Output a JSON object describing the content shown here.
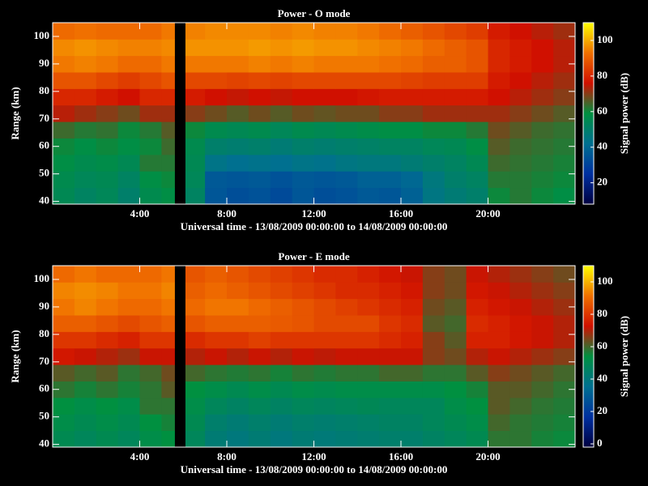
{
  "chart_data": [
    {
      "type": "heatmap",
      "title": "Power - O mode",
      "xlabel": "Universal time - 13/08/2009 00:00:00 to 14/08/2009 00:00:00",
      "ylabel": "Range (km)",
      "colorbar_label": "Signal power (dB)",
      "xlim": [
        0,
        24
      ],
      "ylim": [
        39,
        105
      ],
      "xticks": [
        {
          "value": 4,
          "label": "4:00"
        },
        {
          "value": 8,
          "label": "8:00"
        },
        {
          "value": 12,
          "label": "12:00"
        },
        {
          "value": 16,
          "label": "16:00"
        },
        {
          "value": 20,
          "label": "20:00"
        }
      ],
      "yticks": [
        40,
        50,
        60,
        70,
        80,
        90,
        100
      ],
      "clim": [
        8,
        110
      ],
      "cticks": [
        20,
        40,
        60,
        80,
        100
      ],
      "colormap": [
        "#000040",
        "#0030a0",
        "#007090",
        "#009040",
        "#d01000",
        "#f07000",
        "#ffff00"
      ],
      "xbins": [
        0,
        1,
        2,
        3,
        4,
        5,
        5.6,
        6.1,
        7,
        8,
        9,
        10,
        11,
        12,
        13,
        14,
        15,
        16,
        17,
        18,
        19,
        20,
        21,
        22,
        23,
        24
      ],
      "ybins": [
        39,
        45,
        51,
        57,
        63,
        69,
        75,
        81,
        87,
        93,
        99,
        105
      ],
      "z": [
        [
          55,
          52,
          54,
          50,
          56,
          58,
          null,
          52,
          35,
          33,
          34,
          32,
          35,
          33,
          34,
          36,
          35,
          38,
          45,
          48,
          50,
          60,
          62,
          60,
          58
        ],
        [
          56,
          54,
          55,
          52,
          58,
          60,
          null,
          54,
          36,
          35,
          36,
          34,
          36,
          35,
          36,
          38,
          38,
          40,
          46,
          50,
          52,
          62,
          62,
          61,
          60
        ],
        [
          58,
          56,
          57,
          55,
          62,
          62,
          null,
          55,
          44,
          42,
          43,
          42,
          44,
          43,
          45,
          46,
          46,
          48,
          50,
          52,
          55,
          64,
          63,
          62,
          61
        ],
        [
          60,
          58,
          60,
          58,
          60,
          64,
          null,
          56,
          50,
          49,
          50,
          48,
          50,
          49,
          50,
          51,
          52,
          52,
          54,
          55,
          58,
          66,
          64,
          63,
          62
        ],
        [
          64,
          62,
          63,
          60,
          62,
          66,
          null,
          60,
          56,
          55,
          56,
          54,
          56,
          55,
          56,
          57,
          58,
          58,
          60,
          60,
          62,
          68,
          66,
          64,
          63
        ],
        [
          74,
          72,
          70,
          68,
          72,
          72,
          null,
          70,
          68,
          66,
          68,
          66,
          68,
          67,
          68,
          68,
          70,
          70,
          72,
          72,
          72,
          72,
          70,
          68,
          66
        ],
        [
          80,
          80,
          78,
          76,
          80,
          80,
          null,
          78,
          76,
          75,
          76,
          75,
          76,
          76,
          76,
          77,
          78,
          78,
          78,
          78,
          78,
          76,
          74,
          72,
          70
        ],
        [
          88,
          88,
          86,
          84,
          86,
          88,
          null,
          86,
          86,
          85,
          86,
          85,
          86,
          86,
          86,
          86,
          86,
          85,
          84,
          84,
          84,
          78,
          76,
          74,
          72
        ],
        [
          94,
          95,
          94,
          92,
          92,
          94,
          null,
          94,
          94,
          94,
          95,
          94,
          95,
          94,
          94,
          94,
          93,
          92,
          90,
          90,
          88,
          80,
          78,
          76,
          74
        ],
        [
          96,
          97,
          96,
          95,
          95,
          96,
          null,
          97,
          97,
          97,
          98,
          97,
          98,
          97,
          97,
          96,
          95,
          94,
          92,
          90,
          88,
          80,
          78,
          76,
          74
        ],
        [
          92,
          93,
          92,
          92,
          92,
          94,
          null,
          95,
          96,
          96,
          96,
          95,
          96,
          95,
          95,
          94,
          92,
          90,
          88,
          86,
          84,
          78,
          76,
          74,
          72
        ]
      ]
    },
    {
      "type": "heatmap",
      "title": "Power - E mode",
      "xlabel": "Universal time - 13/08/2009 00:00:00 to 14/08/2009 00:00:00",
      "ylabel": "Range (km)",
      "colorbar_label": "Signal power (dB)",
      "xlim": [
        0,
        24
      ],
      "ylim": [
        39,
        105
      ],
      "xticks": [
        {
          "value": 4,
          "label": "4:00"
        },
        {
          "value": 8,
          "label": "8:00"
        },
        {
          "value": 12,
          "label": "12:00"
        },
        {
          "value": 16,
          "label": "16:00"
        },
        {
          "value": 20,
          "label": "20:00"
        }
      ],
      "yticks": [
        40,
        50,
        60,
        70,
        80,
        90,
        100
      ],
      "clim": [
        -2,
        110
      ],
      "cticks": [
        0,
        20,
        40,
        60,
        80,
        100
      ],
      "colormap": [
        "#000040",
        "#0030a0",
        "#007090",
        "#009040",
        "#d01000",
        "#f07000",
        "#ffff00"
      ],
      "xbins": [
        0,
        1,
        2,
        3,
        4,
        5,
        5.6,
        6.1,
        7,
        8,
        9,
        10,
        11,
        12,
        13,
        14,
        15,
        16,
        17,
        18,
        19,
        20,
        21,
        22,
        23,
        24
      ],
      "ybins": [
        39,
        45,
        51,
        57,
        63,
        69,
        75,
        81,
        87,
        93,
        99,
        105
      ],
      "z": [
        [
          50,
          48,
          50,
          48,
          52,
          54,
          null,
          48,
          42,
          40,
          42,
          40,
          42,
          41,
          42,
          43,
          44,
          44,
          46,
          48,
          50,
          58,
          58,
          56,
          55
        ],
        [
          52,
          50,
          52,
          50,
          54,
          56,
          null,
          50,
          44,
          42,
          44,
          42,
          44,
          43,
          44,
          45,
          46,
          46,
          48,
          50,
          52,
          60,
          58,
          57,
          56
        ],
        [
          54,
          52,
          54,
          52,
          58,
          58,
          null,
          52,
          48,
          46,
          48,
          46,
          48,
          47,
          48,
          49,
          48,
          48,
          48,
          52,
          54,
          62,
          60,
          58,
          57
        ],
        [
          58,
          56,
          58,
          56,
          58,
          62,
          null,
          54,
          52,
          50,
          52,
          50,
          52,
          51,
          52,
          52,
          52,
          52,
          52,
          54,
          56,
          62,
          62,
          60,
          58
        ],
        [
          62,
          60,
          62,
          58,
          60,
          64,
          null,
          60,
          58,
          57,
          58,
          56,
          58,
          57,
          58,
          58,
          60,
          60,
          58,
          58,
          62,
          66,
          64,
          62,
          60
        ],
        [
          74,
          72,
          70,
          68,
          72,
          72,
          null,
          70,
          72,
          70,
          72,
          70,
          72,
          71,
          72,
          72,
          72,
          72,
          66,
          64,
          70,
          72,
          70,
          68,
          66
        ],
        [
          80,
          80,
          78,
          76,
          80,
          80,
          null,
          78,
          80,
          80,
          82,
          80,
          80,
          80,
          80,
          80,
          78,
          76,
          66,
          62,
          76,
          76,
          74,
          72,
          70
        ],
        [
          88,
          88,
          86,
          84,
          86,
          88,
          null,
          86,
          88,
          88,
          88,
          87,
          86,
          84,
          84,
          84,
          80,
          78,
          62,
          60,
          78,
          76,
          74,
          72,
          70
        ],
        [
          92,
          94,
          92,
          90,
          90,
          92,
          null,
          90,
          92,
          92,
          90,
          88,
          86,
          84,
          82,
          80,
          78,
          76,
          64,
          62,
          76,
          74,
          72,
          70,
          68
        ],
        [
          94,
          95,
          94,
          92,
          92,
          94,
          null,
          88,
          90,
          88,
          86,
          84,
          82,
          80,
          78,
          78,
          76,
          74,
          66,
          64,
          74,
          72,
          70,
          68,
          66
        ],
        [
          90,
          92,
          90,
          90,
          90,
          92,
          null,
          86,
          88,
          86,
          84,
          82,
          80,
          78,
          78,
          76,
          74,
          72,
          66,
          64,
          72,
          70,
          68,
          66,
          64
        ]
      ]
    }
  ]
}
